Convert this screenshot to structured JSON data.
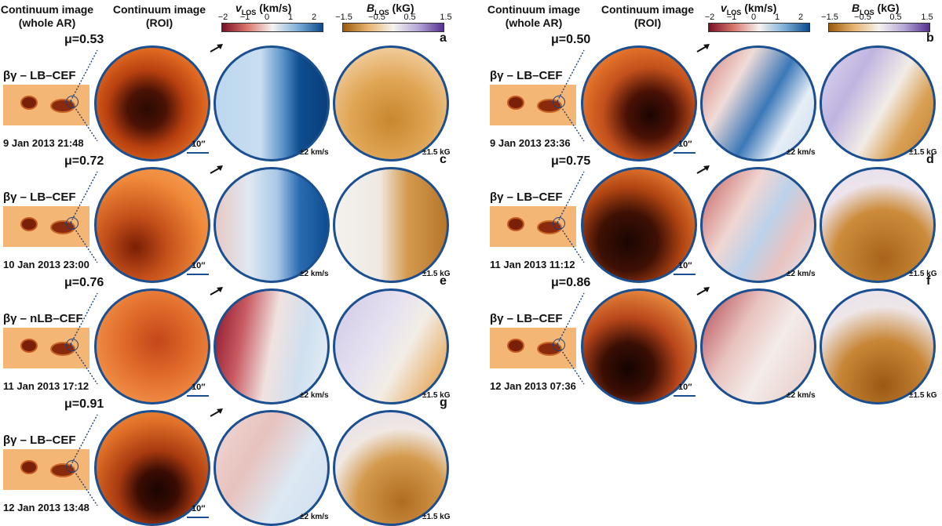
{
  "headers": {
    "whole_ar_line1": "Continuum image",
    "whole_ar_line2": "(whole AR)",
    "roi_line1": "Continuum image",
    "roi_line2": "(ROI)"
  },
  "colorbars": {
    "vlos": {
      "symbol": "v",
      "sub": "LOS",
      "unit": "(km/s)",
      "ticks": [
        "−2",
        "−1",
        "0",
        "1",
        "2"
      ]
    },
    "blos": {
      "symbol": "B",
      "sub": "LOS",
      "unit": "(kG)",
      "ticks": [
        "−1.5",
        "−0.5",
        "0.5",
        "1.5"
      ]
    }
  },
  "scale_label": "10′′",
  "vlos_range": "±2 km/s",
  "blos_range": "±1.5 kG",
  "panels": [
    {
      "id": "a",
      "mu": "μ=0.53",
      "class": "βγ – LB–CEF",
      "date": "9 Jan 2013 21:48"
    },
    {
      "id": "c",
      "mu": "μ=0.72",
      "class": "βγ – LB–CEF",
      "date": "10 Jan 2013 23:00"
    },
    {
      "id": "e",
      "mu": "μ=0.76",
      "class": "βγ – nLB–CEF",
      "date": "11 Jan 2013 17:12"
    },
    {
      "id": "g",
      "mu": "μ=0.91",
      "class": "βγ – LB–CEF",
      "date": "12 Jan 2013 13:48"
    },
    {
      "id": "b",
      "mu": "μ=0.50",
      "class": "βγ – LB–CEF",
      "date": "9 Jan 2013 23:36"
    },
    {
      "id": "d",
      "mu": "μ=0.75",
      "class": "βγ – LB–CEF",
      "date": "11 Jan 2013 11:12"
    },
    {
      "id": "f",
      "mu": "μ=0.86",
      "class": "βγ – LB–CEF",
      "date": "12 Jan 2013 07:36"
    }
  ]
}
